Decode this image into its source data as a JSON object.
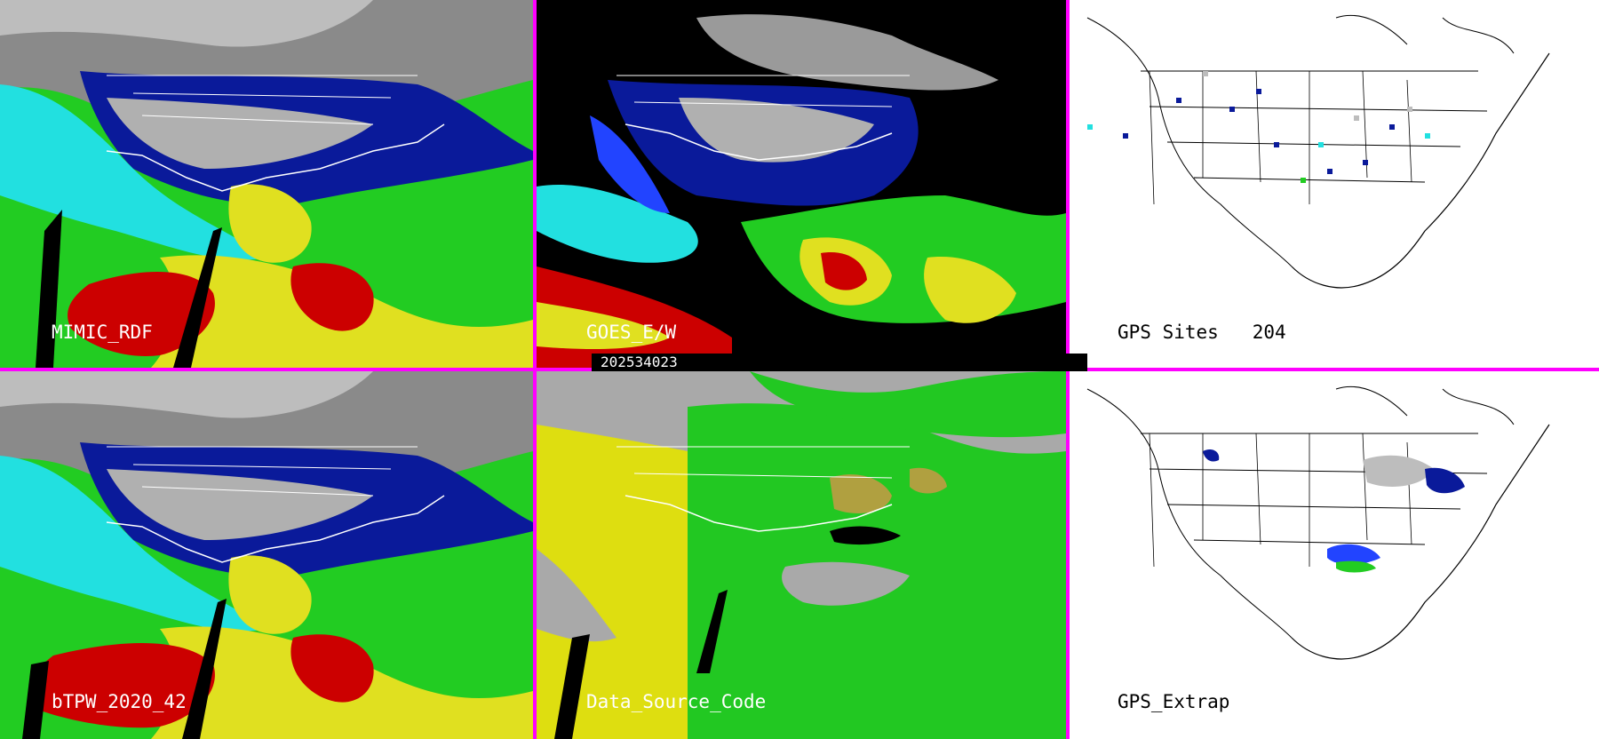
{
  "panels": [
    {
      "label": "MIMIC_RDF",
      "style": "tpw"
    },
    {
      "label": "GOES_E/W",
      "style": "goes"
    },
    {
      "label": "GPS Sites   204",
      "style": "gps"
    },
    {
      "label": "bTPW_2020_42",
      "style": "tpw"
    },
    {
      "label": "Data_Source_Code",
      "style": "source"
    },
    {
      "label": "GPS_Extrap",
      "style": "gpsx"
    }
  ],
  "timestamp": "202534023",
  "colors": {
    "separator": "#ff00ff",
    "dry_gray": "#9a9a9a",
    "navy": "#0a1a9a",
    "blue": "#2244ff",
    "cyan": "#22e0e0",
    "green": "#22cc22",
    "yellow": "#e0e020",
    "olive": "#b0a040",
    "red": "#cc0000",
    "source_gray": "#a9a9a9",
    "source_yellow": "#dede10",
    "source_green": "#22c822"
  }
}
